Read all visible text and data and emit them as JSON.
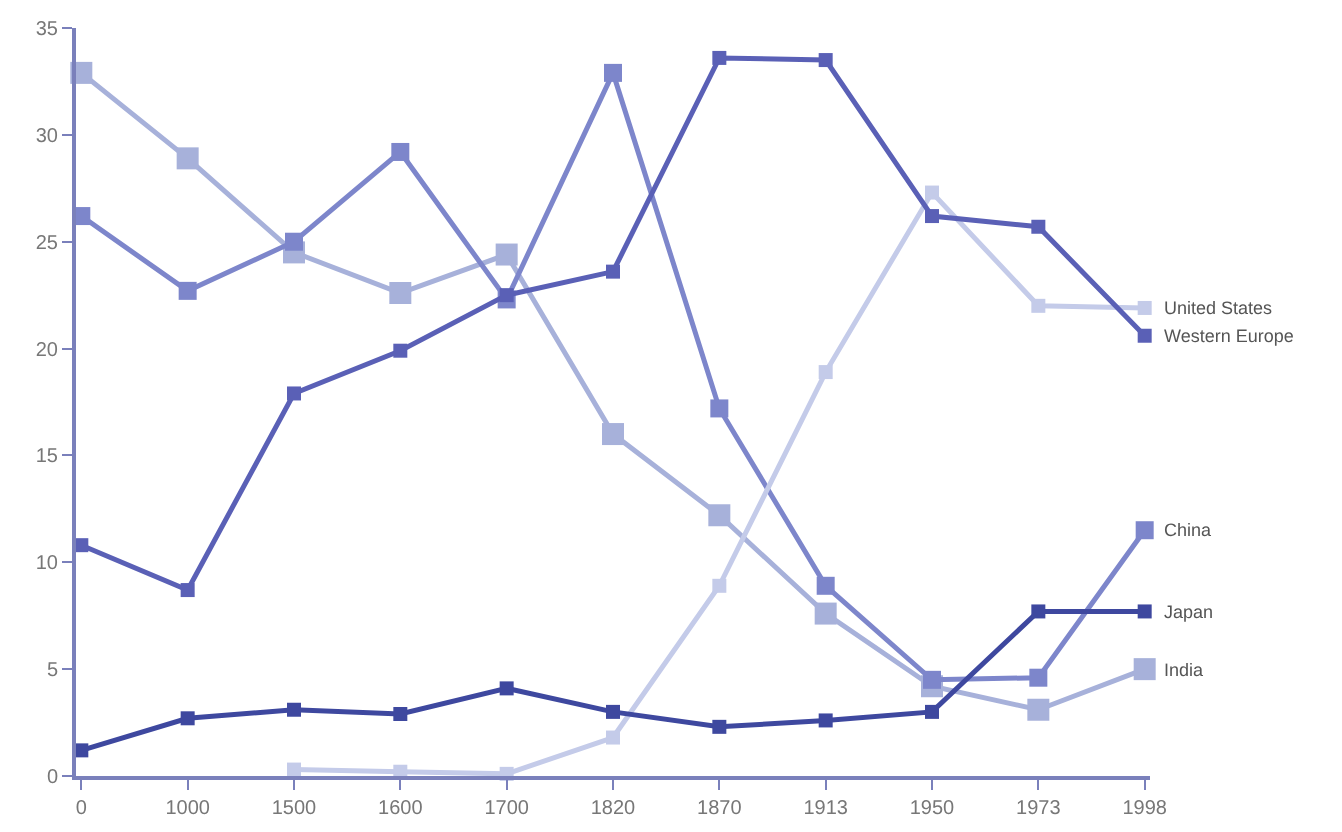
{
  "chart_data": {
    "type": "line",
    "categories": [
      "0",
      "1000",
      "1500",
      "1600",
      "1700",
      "1820",
      "1870",
      "1913",
      "1950",
      "1973",
      "1998"
    ],
    "series": [
      {
        "name": "India",
        "color": "#a7b1da",
        "values": [
          32.9,
          28.9,
          24.5,
          22.6,
          24.4,
          16.0,
          12.2,
          7.6,
          4.2,
          3.1,
          5.0
        ]
      },
      {
        "name": "China",
        "color": "#7d86cb",
        "values": [
          26.2,
          22.7,
          25.0,
          29.2,
          22.3,
          32.9,
          17.2,
          8.9,
          4.5,
          4.6,
          11.5
        ]
      },
      {
        "name": "United States",
        "color": "#c4cbe9",
        "values": [
          null,
          null,
          0.3,
          0.2,
          0.1,
          1.8,
          8.9,
          18.9,
          27.3,
          22.0,
          21.9
        ]
      },
      {
        "name": "Western Europe",
        "color": "#5a60b6",
        "values": [
          10.8,
          8.7,
          17.9,
          19.9,
          22.5,
          23.6,
          33.6,
          33.5,
          26.2,
          25.7,
          20.6
        ]
      },
      {
        "name": "Japan",
        "color": "#3e489f",
        "values": [
          1.2,
          2.7,
          3.1,
          2.9,
          4.1,
          3.0,
          2.3,
          2.6,
          3.0,
          7.7,
          7.7
        ]
      }
    ],
    "ylim": [
      0,
      35
    ],
    "yticks": [
      0,
      5,
      10,
      15,
      20,
      25,
      30,
      35
    ],
    "grid": false,
    "legend": false,
    "marker": "square",
    "line_style": "solid"
  }
}
